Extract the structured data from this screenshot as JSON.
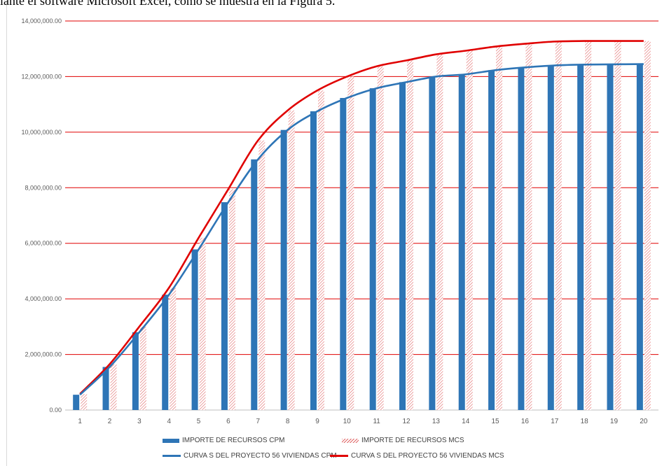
{
  "caption": "iante el software Microsoft Excel, como se muestra en la Figura 5.",
  "colors": {
    "cpm": "#2e75b6",
    "mcs": "#e00000",
    "mcs_hatch": "#e06666",
    "grid": "#e00000"
  },
  "chart_data": {
    "type": "bar",
    "categories": [
      "1",
      "2",
      "3",
      "4",
      "5",
      "6",
      "7",
      "8",
      "9",
      "10",
      "11",
      "12",
      "13",
      "14",
      "15",
      "16",
      "17",
      "18",
      "19",
      "20"
    ],
    "ylim": [
      0,
      14000000
    ],
    "yticks": [
      "0.00",
      "2,000,000.00",
      "4,000,000.00",
      "6,000,000.00",
      "8,000,000.00",
      "10,000,000.00",
      "12,000,000.00",
      "14,000,000.00"
    ],
    "ytick_values": [
      0,
      2000000,
      4000000,
      6000000,
      8000000,
      10000000,
      12000000,
      14000000
    ],
    "grid": true,
    "legend_position": "bottom",
    "series": [
      {
        "name": "IMPORTE DE RECURSOS CPM",
        "kind": "bar",
        "style": "solid",
        "values": [
          550000,
          1550000,
          2800000,
          4150000,
          5780000,
          7480000,
          9020000,
          10080000,
          10750000,
          11230000,
          11580000,
          11800000,
          12000000,
          12080000,
          12230000,
          12330000,
          12400000,
          12430000,
          12440000,
          12450000
        ]
      },
      {
        "name": "IMPORTE DE RECURSOS MCS",
        "kind": "bar",
        "style": "hatched",
        "values": [
          580000,
          1650000,
          3000000,
          4400000,
          6200000,
          7950000,
          9700000,
          10780000,
          11500000,
          12000000,
          12370000,
          12580000,
          12800000,
          12930000,
          13080000,
          13180000,
          13260000,
          13280000,
          13280000,
          13280000
        ]
      },
      {
        "name": "CURVA S DEL PROYECTO 56 VIVIENDAS CPM",
        "kind": "line",
        "values": [
          550000,
          1550000,
          2800000,
          4150000,
          5780000,
          7480000,
          9020000,
          10080000,
          10750000,
          11230000,
          11580000,
          11800000,
          12000000,
          12080000,
          12230000,
          12330000,
          12400000,
          12430000,
          12440000,
          12450000
        ]
      },
      {
        "name": "CURVA S DEL PROYECTO 56 VIVIENDAS MCS",
        "kind": "line",
        "values": [
          580000,
          1650000,
          3000000,
          4400000,
          6200000,
          7950000,
          9700000,
          10780000,
          11500000,
          12000000,
          12370000,
          12580000,
          12800000,
          12930000,
          13080000,
          13180000,
          13260000,
          13280000,
          13280000,
          13280000
        ]
      }
    ]
  }
}
